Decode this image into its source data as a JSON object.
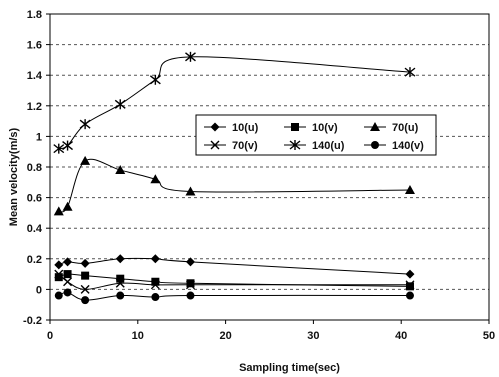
{
  "chart_data": {
    "type": "line",
    "title": "",
    "xlabel": "Sampling time(sec)",
    "ylabel": "Mean velocity(m/s)",
    "xlim": [
      0,
      50
    ],
    "ylim": [
      -0.2,
      1.8
    ],
    "x_ticks": [
      0,
      10,
      20,
      30,
      40,
      50
    ],
    "y_ticks": [
      -0.2,
      0,
      0.2,
      0.4,
      0.6,
      0.8,
      1,
      1.2,
      1.4,
      1.6,
      1.8
    ],
    "x_tick_labels": [
      "0",
      "10",
      "20",
      "30",
      "40",
      "50"
    ],
    "y_tick_labels": [
      "-0.2",
      "0",
      "0.2",
      "0.4",
      "0.6",
      "0.8",
      "1",
      "1.2",
      "1.4",
      "1.6",
      "1.8"
    ],
    "grid": "horizontal dashed",
    "legend_position": "center-right",
    "series": [
      {
        "name": "10(u)",
        "marker": "diamond",
        "x": [
          1,
          2,
          4,
          8,
          12,
          16,
          41
        ],
        "y": [
          0.16,
          0.18,
          0.17,
          0.2,
          0.2,
          0.18,
          0.1
        ]
      },
      {
        "name": "10(v)",
        "marker": "square",
        "x": [
          1,
          2,
          4,
          8,
          12,
          16,
          41
        ],
        "y": [
          0.08,
          0.1,
          0.09,
          0.07,
          0.05,
          0.04,
          0.02
        ]
      },
      {
        "name": "70(u)",
        "marker": "triangle",
        "x": [
          1,
          2,
          4,
          8,
          12,
          16,
          41
        ],
        "y": [
          0.51,
          0.54,
          0.84,
          0.78,
          0.72,
          0.64,
          0.65
        ]
      },
      {
        "name": "70(v)",
        "marker": "x",
        "x": [
          1,
          2,
          4,
          8,
          12,
          16,
          41
        ],
        "y": [
          0.1,
          0.05,
          0.0,
          0.04,
          0.03,
          0.03,
          0.03
        ]
      },
      {
        "name": "140(u)",
        "marker": "asterisk",
        "x": [
          1,
          2,
          4,
          8,
          12,
          16,
          41
        ],
        "y": [
          0.92,
          0.94,
          1.08,
          1.21,
          1.37,
          1.52,
          1.42
        ]
      },
      {
        "name": "140(v)",
        "marker": "circle",
        "x": [
          1,
          2,
          4,
          8,
          12,
          16,
          41
        ],
        "y": [
          -0.04,
          -0.02,
          -0.07,
          -0.04,
          -0.05,
          -0.04,
          -0.04
        ]
      }
    ]
  }
}
